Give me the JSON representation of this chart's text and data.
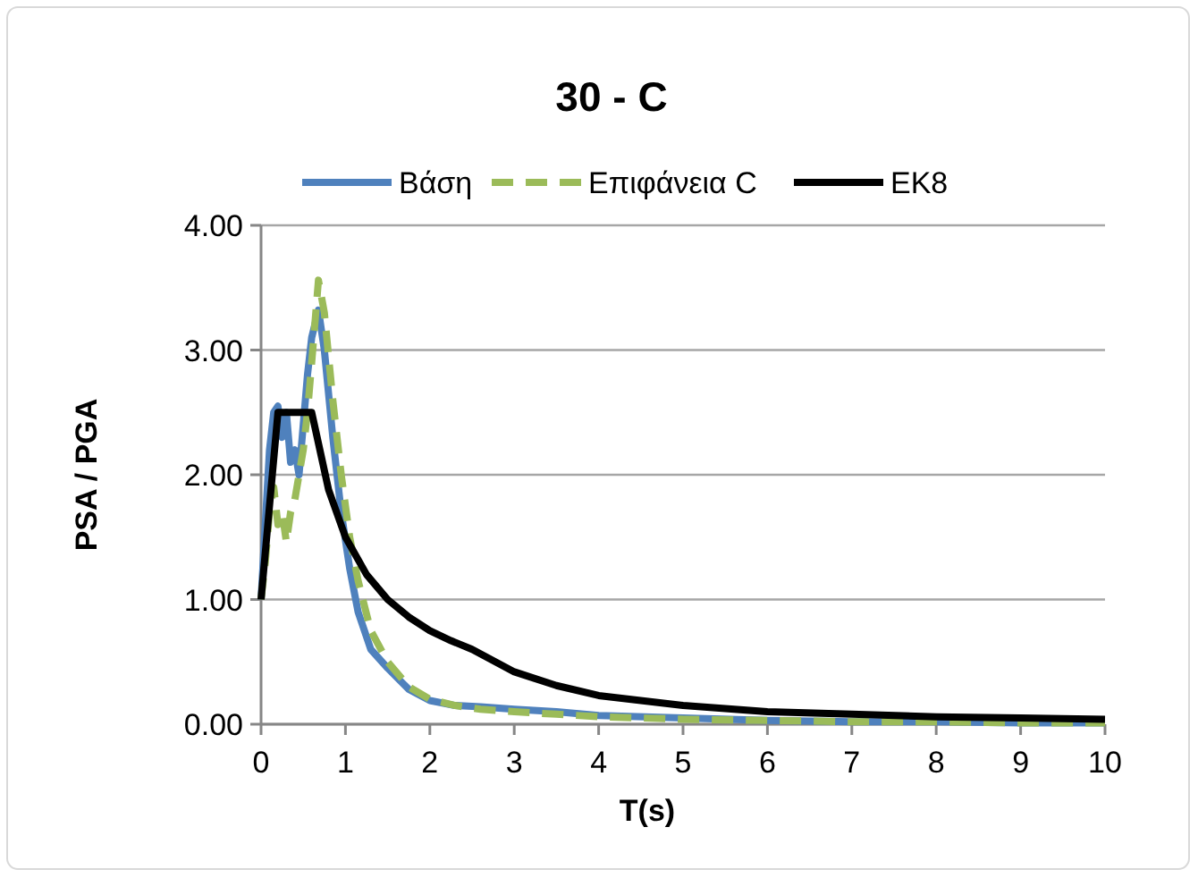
{
  "chart_data": {
    "type": "line",
    "title": "30 - C",
    "xlabel": "T(s)",
    "ylabel": "PSA / PGA",
    "xlim": [
      0,
      10
    ],
    "ylim": [
      0,
      4
    ],
    "xticks": [
      0,
      1,
      2,
      3,
      4,
      5,
      6,
      7,
      8,
      9,
      10
    ],
    "yticks": [
      {
        "value": 0,
        "label": "0.00"
      },
      {
        "value": 1,
        "label": "1.00"
      },
      {
        "value": 2,
        "label": "2.00"
      },
      {
        "value": 3,
        "label": "3.00"
      },
      {
        "value": 4,
        "label": "4.00"
      }
    ],
    "grid": "y",
    "legend": "top",
    "marker": "none",
    "series": [
      {
        "name": "Βάση",
        "color": "#4f81bd",
        "line_style": "solid",
        "x": [
          0,
          0.05,
          0.1,
          0.15,
          0.2,
          0.25,
          0.3,
          0.35,
          0.4,
          0.45,
          0.5,
          0.55,
          0.6,
          0.68,
          0.75,
          0.85,
          0.95,
          1.05,
          1.15,
          1.3,
          1.5,
          1.75,
          2,
          2.3,
          2.6,
          3,
          3.5,
          4,
          5,
          6,
          7,
          8,
          9,
          10
        ],
        "values": [
          1,
          1.6,
          2.2,
          2.5,
          2.55,
          2.3,
          2.5,
          2.1,
          2.2,
          2.0,
          2.4,
          2.8,
          3.1,
          3.32,
          3.0,
          2.3,
          1.7,
          1.25,
          0.9,
          0.6,
          0.45,
          0.28,
          0.19,
          0.15,
          0.14,
          0.12,
          0.1,
          0.07,
          0.05,
          0.03,
          0.02,
          0.02,
          0.01,
          0.01
        ]
      },
      {
        "name": "Επιφάνεια C",
        "color": "#9bbb59",
        "line_style": "dashed",
        "x": [
          0,
          0.05,
          0.1,
          0.15,
          0.2,
          0.25,
          0.3,
          0.35,
          0.4,
          0.45,
          0.5,
          0.55,
          0.6,
          0.68,
          0.75,
          0.85,
          0.95,
          1.05,
          1.15,
          1.3,
          1.5,
          1.75,
          2,
          2.3,
          2.6,
          3,
          3.5,
          4,
          5,
          6,
          7,
          8,
          9,
          10
        ],
        "values": [
          1,
          1.3,
          1.7,
          1.9,
          1.6,
          1.7,
          1.46,
          1.7,
          1.8,
          2.0,
          2.2,
          2.5,
          2.9,
          3.56,
          3.3,
          2.6,
          2.0,
          1.5,
          1.15,
          0.75,
          0.5,
          0.3,
          0.2,
          0.15,
          0.12,
          0.1,
          0.08,
          0.06,
          0.04,
          0.03,
          0.02,
          0.02,
          0.01,
          0.01
        ]
      },
      {
        "name": "EK8",
        "color": "#000000",
        "line_style": "solid",
        "x": [
          0,
          0.2,
          0.6,
          0.8,
          1,
          1.25,
          1.5,
          1.75,
          2,
          2.25,
          2.5,
          3,
          3.5,
          4,
          5,
          6,
          7,
          8,
          9,
          10
        ],
        "values": [
          1,
          2.5,
          2.5,
          1.88,
          1.5,
          1.2,
          1,
          0.86,
          0.75,
          0.67,
          0.6,
          0.42,
          0.31,
          0.23,
          0.15,
          0.1,
          0.08,
          0.06,
          0.05,
          0.04
        ]
      }
    ]
  }
}
